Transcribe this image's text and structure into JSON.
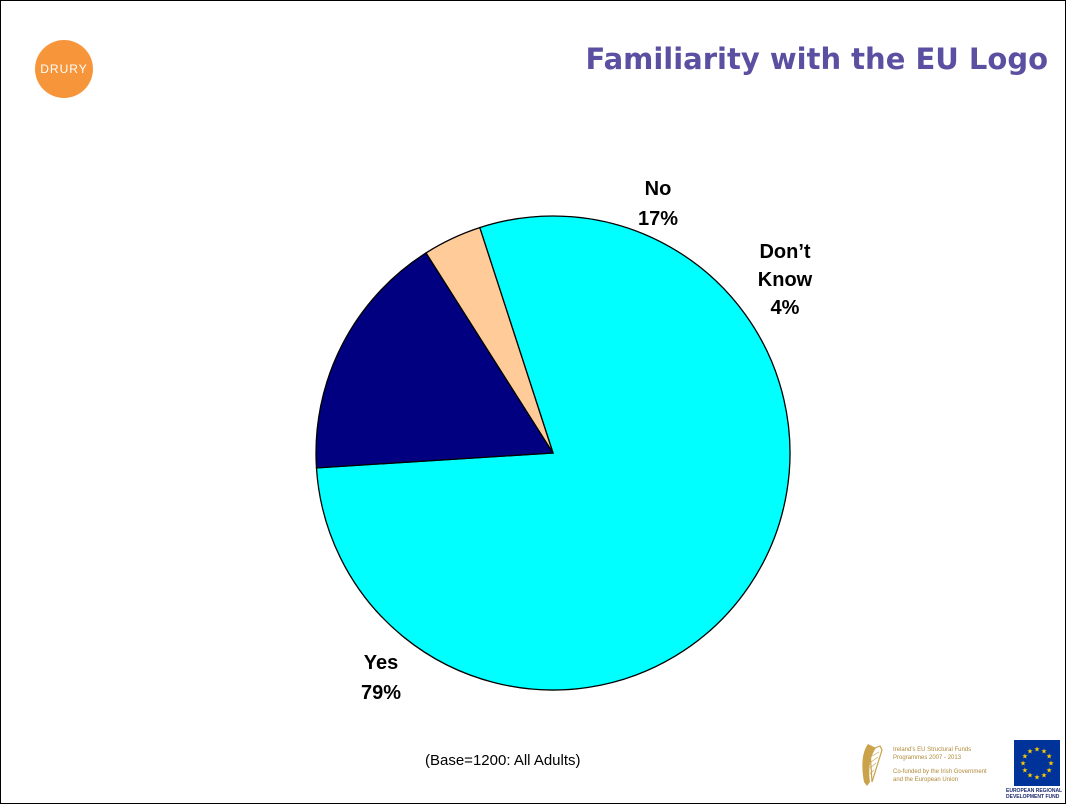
{
  "header": {
    "title": "Familiarity with the EU Logo",
    "title_color": "#5b4fa2",
    "logo_text": "DRURY",
    "logo_color": "#f7953b"
  },
  "chart_data": {
    "type": "pie",
    "title": "Familiarity with the EU Logo",
    "slices": [
      {
        "label": "Yes",
        "value": 79,
        "value_label": "79%",
        "color": "#00ffff"
      },
      {
        "label": "No",
        "value": 17,
        "value_label": "17%",
        "color": "#000080"
      },
      {
        "label": "Don’t Know",
        "label_lines": [
          "Don’t",
          "Know"
        ],
        "value": 4,
        "value_label": "4%",
        "color": "#ffcc99"
      }
    ],
    "start_angle_deg": -18,
    "outline_color": "#000000",
    "legend": "none"
  },
  "footer": {
    "base_note": "(Base=1200: All Adults)",
    "funds_lines": [
      "Ireland's EU Structural Funds",
      "Programmes 2007 - 2013",
      "Co-funded by the Irish Government",
      "and the European Union"
    ],
    "erdf_lines": [
      "EUROPEAN REGIONAL",
      "DEVELOPMENT FUND"
    ],
    "eu_flag_color": "#003399",
    "eu_star_color": "#ffcc00",
    "funds_color": "#b08a3a"
  }
}
